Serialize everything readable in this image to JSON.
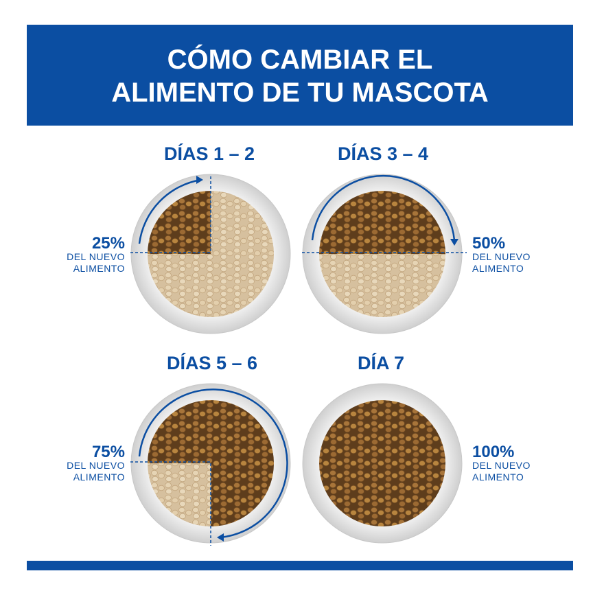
{
  "header": {
    "title_lines": [
      "CÓMO CAMBIAR EL",
      "ALIMENTO DE TU MASCOTA"
    ]
  },
  "steps": [
    {
      "label": "DÍAS 1 – 2",
      "percent": "25%",
      "caption_lines": [
        "DEL NUEVO",
        "ALIMENTO"
      ]
    },
    {
      "label": "DÍAS 3 – 4",
      "percent": "50%",
      "caption_lines": [
        "DEL NUEVO",
        "ALIMENTO"
      ]
    },
    {
      "label": "DÍAS 5 – 6",
      "percent": "75%",
      "caption_lines": [
        "DEL NUEVO",
        "ALIMENTO"
      ]
    },
    {
      "label": "DÍA 7",
      "percent": "100%",
      "caption_lines": [
        "DEL NUEVO",
        "ALIMENTO"
      ]
    }
  ]
}
